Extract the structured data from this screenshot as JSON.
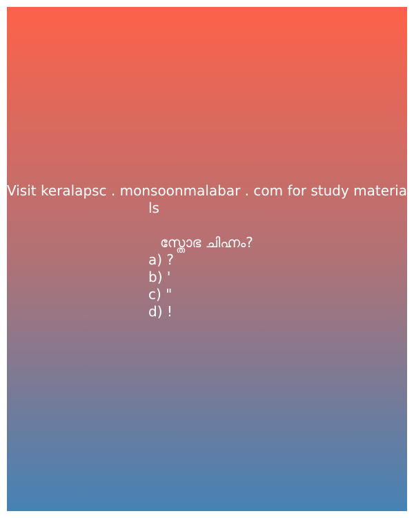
{
  "header": {
    "line1": "Visit keralapsc . monsoonmalabar . com for study materia",
    "line2": "ls"
  },
  "question": {
    "text": "സ്തോഭ ചിഹ്നം?"
  },
  "options": [
    "a) ?",
    "b) '",
    "c) \"",
    "d) !"
  ],
  "colors": {
    "gradient_top": "#fd624a",
    "gradient_bottom": "#4682b4",
    "text": "#ffffff"
  }
}
